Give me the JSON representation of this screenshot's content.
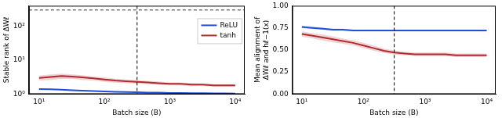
{
  "chart_data": [
    {
      "type": "line",
      "x_label": "Batch size (B)",
      "y_label": "Stable rank of ΔWℓ",
      "x": [
        10,
        15,
        22,
        32,
        46,
        68,
        100,
        147,
        215,
        316,
        464,
        681,
        1000,
        1468,
        2154,
        3162,
        4642,
        6813,
        10000
      ],
      "series": [
        {
          "name": "ReLU",
          "color": "#1f4fd8",
          "values": [
            1.4,
            1.38,
            1.35,
            1.3,
            1.27,
            1.23,
            1.2,
            1.17,
            1.15,
            1.13,
            1.1,
            1.1,
            1.08,
            1.07,
            1.06,
            1.06,
            1.05,
            1.05,
            1.04
          ],
          "errors": [
            0.05,
            0.05,
            0.04,
            0.04,
            0.03,
            0.03,
            0.03,
            0.03,
            0.02,
            0.02,
            0.02,
            0.02,
            0.02,
            0.01,
            0.01,
            0.01,
            0.01,
            0.01,
            0.01
          ]
        },
        {
          "name": "tanh",
          "color": "#b22a2e",
          "values": [
            3.0,
            3.2,
            3.4,
            3.3,
            3.1,
            2.9,
            2.7,
            2.5,
            2.4,
            2.3,
            2.2,
            2.1,
            2.0,
            2.0,
            1.9,
            1.9,
            1.8,
            1.8,
            1.8
          ],
          "errors": [
            0.5,
            0.6,
            0.6,
            0.5,
            0.5,
            0.4,
            0.4,
            0.35,
            0.3,
            0.3,
            0.25,
            0.25,
            0.2,
            0.2,
            0.2,
            0.15,
            0.15,
            0.15,
            0.15
          ]
        }
      ],
      "reference_lines": [
        {
          "axis": "y",
          "value": 300,
          "color": "#333333",
          "line_style": "dashed"
        },
        {
          "axis": "x",
          "value": 316,
          "color": "#000000",
          "line_style": "dashed"
        }
      ],
      "xlim": [
        7,
        14000
      ],
      "xticks": [
        {
          "value": 10,
          "label": "10¹"
        },
        {
          "value": 100,
          "label": "10²"
        },
        {
          "value": 1000,
          "label": "10³"
        },
        {
          "value": 10000,
          "label": "10⁴"
        }
      ],
      "ylim": [
        1,
        400
      ],
      "yticks": [
        {
          "value": 1,
          "label": "10⁰"
        },
        {
          "value": 10,
          "label": "10¹"
        },
        {
          "value": 100,
          "label": "10²"
        }
      ],
      "log": true,
      "grid": false,
      "legend": "upper right"
    },
    {
      "type": "line",
      "x_label": "Batch size (B)",
      "y_label": [
        "Mean alignment of",
        "ΔWℓ and hℓ−1(x)"
      ],
      "x": [
        10,
        15,
        22,
        32,
        46,
        68,
        100,
        147,
        215,
        316,
        464,
        681,
        1000,
        1468,
        2154,
        3162,
        4642,
        6813,
        10000
      ],
      "series": [
        {
          "name": "ReLU",
          "color": "#1f4fd8",
          "values": [
            0.76,
            0.75,
            0.74,
            0.73,
            0.73,
            0.72,
            0.72,
            0.72,
            0.72,
            0.72,
            0.72,
            0.72,
            0.72,
            0.72,
            0.72,
            0.72,
            0.72,
            0.72,
            0.72
          ],
          "errors": [
            0.015,
            0.015,
            0.012,
            0.012,
            0.01,
            0.01,
            0.01,
            0.01,
            0.01,
            0.01,
            0.01,
            0.01,
            0.01,
            0.01,
            0.01,
            0.01,
            0.01,
            0.01,
            0.01
          ]
        },
        {
          "name": "tanh",
          "color": "#b22a2e",
          "values": [
            0.68,
            0.66,
            0.64,
            0.62,
            0.6,
            0.58,
            0.55,
            0.52,
            0.49,
            0.47,
            0.46,
            0.45,
            0.45,
            0.45,
            0.45,
            0.44,
            0.44,
            0.44,
            0.44
          ],
          "errors": [
            0.03,
            0.03,
            0.035,
            0.035,
            0.03,
            0.03,
            0.03,
            0.03,
            0.025,
            0.025,
            0.02,
            0.02,
            0.02,
            0.02,
            0.02,
            0.02,
            0.02,
            0.02,
            0.02
          ]
        }
      ],
      "reference_lines": [
        {
          "axis": "x",
          "value": 316,
          "color": "#000000",
          "line_style": "dashed"
        }
      ],
      "xlim": [
        7,
        14000
      ],
      "xticks": [
        {
          "value": 10,
          "label": "10¹"
        },
        {
          "value": 100,
          "label": "10²"
        },
        {
          "value": 1000,
          "label": "10³"
        },
        {
          "value": 10000,
          "label": "10⁴"
        }
      ],
      "ylim": [
        0,
        1
      ],
      "yticks": [
        {
          "value": 0,
          "label": "0.00"
        },
        {
          "value": 0.25,
          "label": "0.25"
        },
        {
          "value": 0.5,
          "label": "0.50"
        },
        {
          "value": 0.75,
          "label": "0.75"
        },
        {
          "value": 1,
          "label": "1.00"
        }
      ],
      "log": "x",
      "grid": false
    }
  ]
}
